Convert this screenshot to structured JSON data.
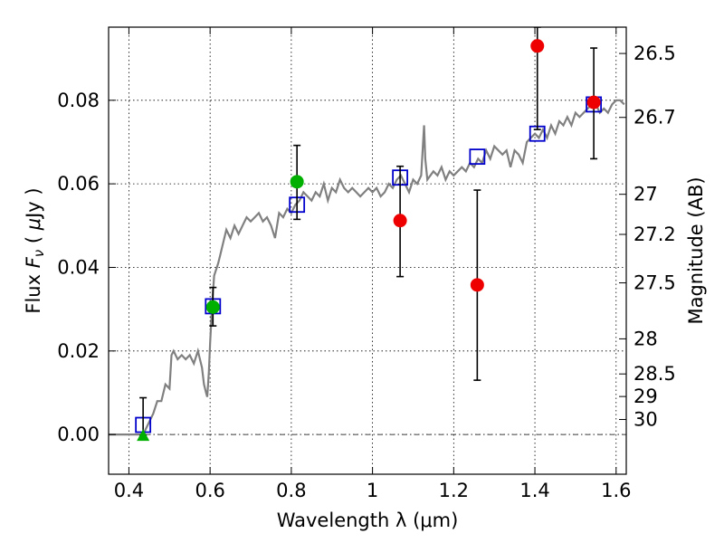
{
  "chart_data": {
    "type": "scatter",
    "xlabel": "Wavelength  λ (μm)",
    "ylabel_parts": [
      "Flux  ",
      "F",
      "ν",
      "  ( ",
      "μ",
      "Jy )"
    ],
    "y2label": "Magnitude (AB)",
    "xlim": [
      0.35,
      1.625
    ],
    "ylim": [
      -0.0095,
      0.0975
    ],
    "grid": true,
    "x_ticks": [
      {
        "value": 0.4,
        "label": "0.4"
      },
      {
        "value": 0.6,
        "label": "0.6"
      },
      {
        "value": 0.8,
        "label": "0.8"
      },
      {
        "value": 1.0,
        "label": "1"
      },
      {
        "value": 1.2,
        "label": "1.2"
      },
      {
        "value": 1.4,
        "label": "1.4"
      },
      {
        "value": 1.6,
        "label": "1.6"
      }
    ],
    "y_ticks": [
      {
        "value": 0.0,
        "label": "0.00"
      },
      {
        "value": 0.02,
        "label": "0.02"
      },
      {
        "value": 0.04,
        "label": "0.04"
      },
      {
        "value": 0.06,
        "label": "0.06"
      },
      {
        "value": 0.08,
        "label": "0.08"
      }
    ],
    "mag_ticks": [
      {
        "flux": 0.0912,
        "label": "26.5"
      },
      {
        "flux": 0.0759,
        "label": "26.7"
      },
      {
        "flux": 0.0575,
        "label": "27"
      },
      {
        "flux": 0.0479,
        "label": "27.2"
      },
      {
        "flux": 0.0363,
        "label": "27.5"
      },
      {
        "flux": 0.0229,
        "label": "28"
      },
      {
        "flux": 0.0145,
        "label": "28.5"
      },
      {
        "flux": 0.0091,
        "label": "29"
      },
      {
        "flux": 0.0036,
        "label": "30"
      }
    ],
    "model_sed": {
      "color": "#808080",
      "points": [
        [
          0.35,
          0.0
        ],
        [
          0.435,
          0.0
        ],
        [
          0.44,
          0.001
        ],
        [
          0.46,
          0.005
        ],
        [
          0.47,
          0.008
        ],
        [
          0.48,
          0.008
        ],
        [
          0.49,
          0.012
        ],
        [
          0.5,
          0.011
        ],
        [
          0.505,
          0.019
        ],
        [
          0.51,
          0.02
        ],
        [
          0.52,
          0.018
        ],
        [
          0.53,
          0.019
        ],
        [
          0.54,
          0.018
        ],
        [
          0.55,
          0.019
        ],
        [
          0.56,
          0.017
        ],
        [
          0.57,
          0.02
        ],
        [
          0.58,
          0.016
        ],
        [
          0.585,
          0.012
        ],
        [
          0.59,
          0.01
        ],
        [
          0.593,
          0.009
        ],
        [
          0.597,
          0.015
        ],
        [
          0.6,
          0.022
        ],
        [
          0.605,
          0.031
        ],
        [
          0.61,
          0.038
        ],
        [
          0.62,
          0.041
        ],
        [
          0.625,
          0.043
        ],
        [
          0.63,
          0.045
        ],
        [
          0.64,
          0.049
        ],
        [
          0.65,
          0.047
        ],
        [
          0.66,
          0.05
        ],
        [
          0.67,
          0.048
        ],
        [
          0.68,
          0.05
        ],
        [
          0.69,
          0.052
        ],
        [
          0.7,
          0.051
        ],
        [
          0.71,
          0.052
        ],
        [
          0.72,
          0.053
        ],
        [
          0.73,
          0.051
        ],
        [
          0.74,
          0.052
        ],
        [
          0.75,
          0.05
        ],
        [
          0.76,
          0.047
        ],
        [
          0.77,
          0.053
        ],
        [
          0.78,
          0.052
        ],
        [
          0.79,
          0.054
        ],
        [
          0.8,
          0.053
        ],
        [
          0.81,
          0.055
        ],
        [
          0.82,
          0.056
        ],
        [
          0.83,
          0.058
        ],
        [
          0.84,
          0.057
        ],
        [
          0.85,
          0.056
        ],
        [
          0.86,
          0.058
        ],
        [
          0.87,
          0.057
        ],
        [
          0.88,
          0.06
        ],
        [
          0.89,
          0.056
        ],
        [
          0.9,
          0.059
        ],
        [
          0.91,
          0.058
        ],
        [
          0.92,
          0.061
        ],
        [
          0.93,
          0.059
        ],
        [
          0.94,
          0.058
        ],
        [
          0.95,
          0.059
        ],
        [
          0.96,
          0.058
        ],
        [
          0.97,
          0.057
        ],
        [
          0.98,
          0.058
        ],
        [
          0.99,
          0.059
        ],
        [
          1.0,
          0.058
        ],
        [
          1.01,
          0.059
        ],
        [
          1.02,
          0.057
        ],
        [
          1.03,
          0.058
        ],
        [
          1.04,
          0.06
        ],
        [
          1.05,
          0.059
        ],
        [
          1.06,
          0.061
        ],
        [
          1.07,
          0.062
        ],
        [
          1.08,
          0.06
        ],
        [
          1.09,
          0.058
        ],
        [
          1.1,
          0.061
        ],
        [
          1.11,
          0.06
        ],
        [
          1.12,
          0.062
        ],
        [
          1.127,
          0.074
        ],
        [
          1.13,
          0.066
        ],
        [
          1.135,
          0.061
        ],
        [
          1.15,
          0.063
        ],
        [
          1.16,
          0.062
        ],
        [
          1.17,
          0.064
        ],
        [
          1.18,
          0.061
        ],
        [
          1.19,
          0.063
        ],
        [
          1.2,
          0.062
        ],
        [
          1.21,
          0.063
        ],
        [
          1.22,
          0.064
        ],
        [
          1.23,
          0.063
        ],
        [
          1.24,
          0.065
        ],
        [
          1.25,
          0.064
        ],
        [
          1.26,
          0.066
        ],
        [
          1.27,
          0.065
        ],
        [
          1.28,
          0.068
        ],
        [
          1.29,
          0.066
        ],
        [
          1.3,
          0.069
        ],
        [
          1.31,
          0.068
        ],
        [
          1.32,
          0.067
        ],
        [
          1.33,
          0.068
        ],
        [
          1.34,
          0.064
        ],
        [
          1.35,
          0.068
        ],
        [
          1.36,
          0.067
        ],
        [
          1.37,
          0.065
        ],
        [
          1.38,
          0.07
        ],
        [
          1.39,
          0.071
        ],
        [
          1.4,
          0.072
        ],
        [
          1.41,
          0.071
        ],
        [
          1.42,
          0.073
        ],
        [
          1.43,
          0.071
        ],
        [
          1.44,
          0.074
        ],
        [
          1.45,
          0.072
        ],
        [
          1.46,
          0.075
        ],
        [
          1.47,
          0.074
        ],
        [
          1.48,
          0.076
        ],
        [
          1.49,
          0.074
        ],
        [
          1.5,
          0.077
        ],
        [
          1.51,
          0.076
        ],
        [
          1.52,
          0.077
        ],
        [
          1.53,
          0.078
        ],
        [
          1.54,
          0.079
        ],
        [
          1.55,
          0.079
        ],
        [
          1.56,
          0.077
        ],
        [
          1.57,
          0.078
        ],
        [
          1.58,
          0.077
        ],
        [
          1.59,
          0.079
        ],
        [
          1.6,
          0.08
        ],
        [
          1.61,
          0.08
        ],
        [
          1.62,
          0.079
        ]
      ]
    },
    "model_photometry": {
      "marker": "open-square",
      "color": "#0000cc",
      "points": [
        {
          "x": 0.435,
          "y": 0.0023
        },
        {
          "x": 0.607,
          "y": 0.0307
        },
        {
          "x": 0.814,
          "y": 0.055
        },
        {
          "x": 1.068,
          "y": 0.0615
        },
        {
          "x": 1.258,
          "y": 0.0665
        },
        {
          "x": 1.406,
          "y": 0.072
        },
        {
          "x": 1.545,
          "y": 0.079
        }
      ]
    },
    "observed_green": {
      "color": "#00b000",
      "points": [
        {
          "x": 0.607,
          "y": 0.0305,
          "ylo": 0.026,
          "yhi": 0.0352
        },
        {
          "x": 0.814,
          "y": 0.0605,
          "ylo": 0.0515,
          "yhi": 0.0692
        }
      ]
    },
    "observed_upper_limit": {
      "marker": "triangle",
      "color": "#00b000",
      "points": [
        {
          "x": 0.435,
          "y": -0.0002,
          "ylo": -0.0002,
          "yhi": 0.0088
        }
      ]
    },
    "observed_red": {
      "color": "#ee0000",
      "points": [
        {
          "x": 1.068,
          "y": 0.0512,
          "ylo": 0.0378,
          "yhi": 0.0642
        },
        {
          "x": 1.258,
          "y": 0.0358,
          "ylo": 0.013,
          "yhi": 0.0585
        },
        {
          "x": 1.406,
          "y": 0.093,
          "ylo": 0.073,
          "yhi": 0.0975
        },
        {
          "x": 1.545,
          "y": 0.0795,
          "ylo": 0.066,
          "yhi": 0.0925
        }
      ]
    }
  }
}
